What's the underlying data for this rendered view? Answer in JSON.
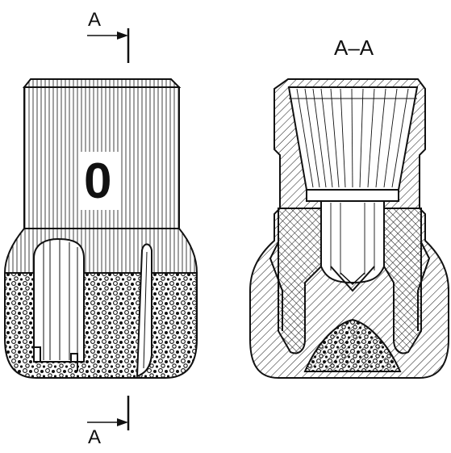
{
  "labels": {
    "section_top": "A",
    "section_bottom": "A",
    "section_view": "A–A",
    "marking": "0"
  },
  "colors": {
    "ink": "#111111",
    "paper": "#ffffff"
  }
}
